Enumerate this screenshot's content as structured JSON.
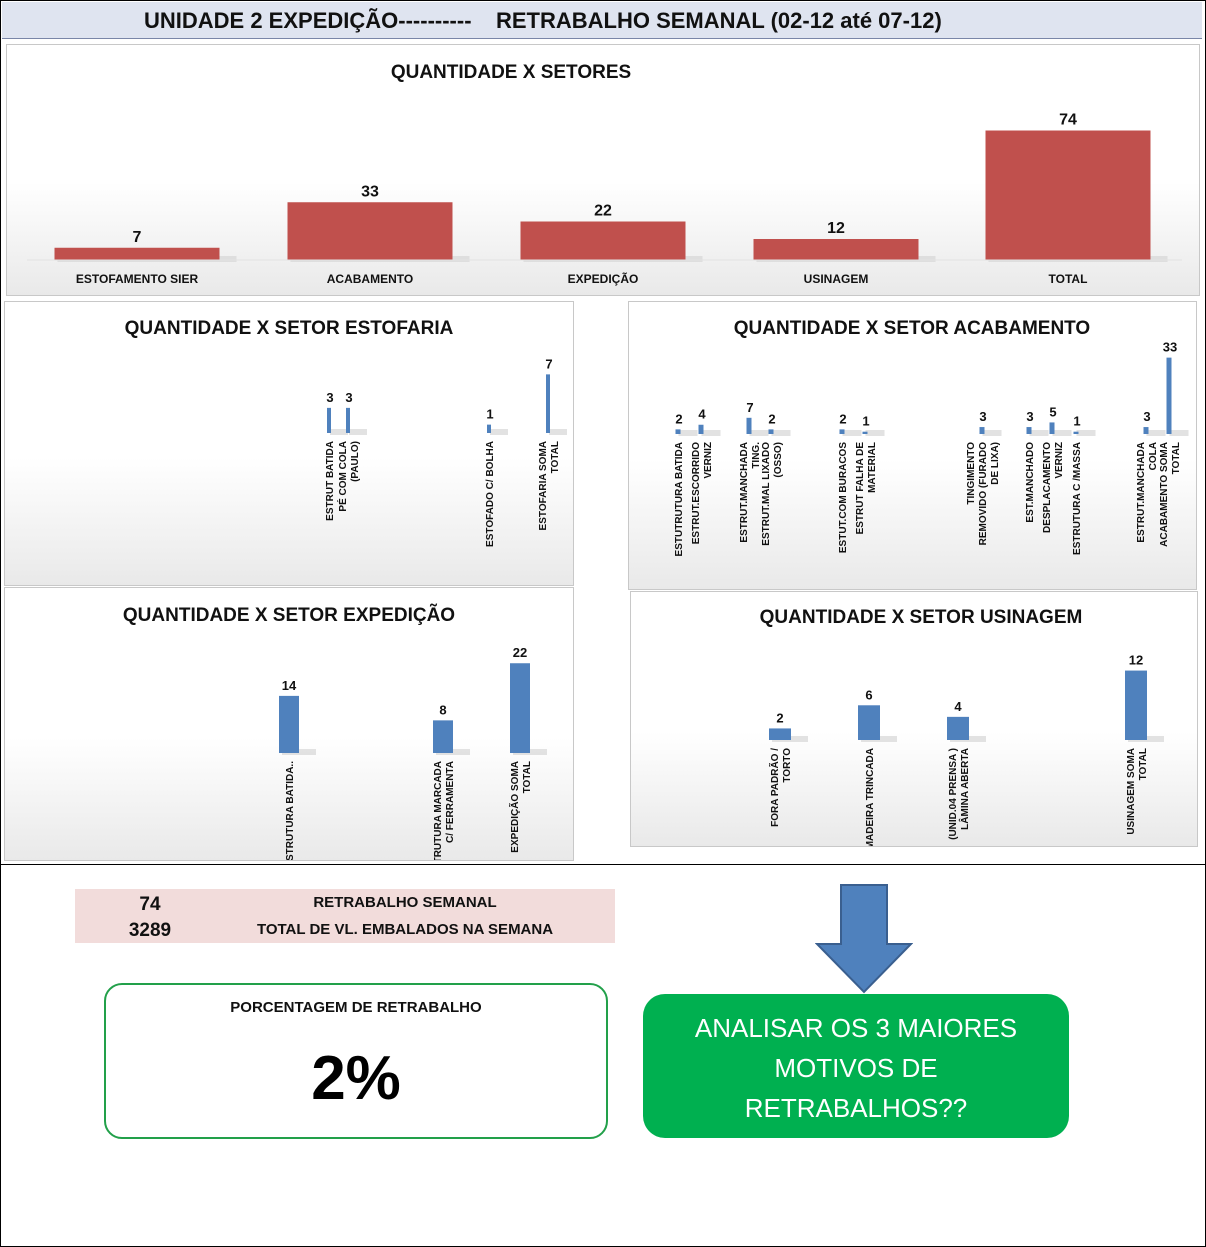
{
  "header": {
    "title": "UNIDADE 2 EXPEDIÇÃO----------    RETRABALHO SEMANAL (02-12 até 07-12)"
  },
  "chart_data": [
    {
      "id": "setores",
      "type": "bar",
      "title": "QUANTIDADE X SETORES",
      "categories": [
        "ESTOFAMENTO SIER",
        "ACABAMENTO",
        "EXPEDIÇÃO",
        "USINAGEM",
        "TOTAL"
      ],
      "values": [
        7,
        33,
        22,
        12,
        74
      ],
      "color": "#c0504d",
      "ylim": [
        0,
        80
      ]
    },
    {
      "id": "estofaria",
      "type": "bar",
      "title": "QUANTIDADE X SETOR ESTOFARIA",
      "categories": [
        "ESTRUT BATIDA",
        "PÉ COM COLA (PAULO)",
        "ESTOFADO C/ BOLHA",
        "ESTOFARIA SOMA TOTAL"
      ],
      "values": [
        3,
        3,
        1,
        7
      ],
      "color": "#4f81bd",
      "ylim": [
        0,
        8
      ]
    },
    {
      "id": "acabamento",
      "type": "bar",
      "title": "QUANTIDADE X SETOR ACABAMENTO",
      "categories": [
        "ESTUTRUTURA BATIDA",
        "ESTRUT.ESCORRIDO VERNIZ",
        "ESTRUT.MANCHADA TING.",
        "ESTRUT.MAL LIXADO (OSSO)",
        "ESTUT.COM BURACOS",
        "ESTRUT FALHA DE MATERIAL",
        "TINGIMENTO REMOVIDO (FURADO DE LIXA)",
        "EST.MANCHADO",
        "DESPLACAMENTO VERNIZ",
        "ESTRUTURA C /MASSA",
        "ESTRUT.MANCHADA COLA",
        "ACABAMENTO SOMA TOTAL"
      ],
      "values": [
        2,
        4,
        7,
        2,
        2,
        1,
        3,
        3,
        5,
        1,
        3,
        33
      ],
      "color": "#4f81bd",
      "ylim": [
        0,
        35
      ]
    },
    {
      "id": "expedicao",
      "type": "bar",
      "title": "QUANTIDADE X SETOR EXPEDIÇÃO",
      "categories": [
        "ESTRUTURA BATIDA..",
        "ESTRUTURA MARCADA C/ FERRAMENTA",
        "EXPEDIÇÃO SOMA TOTAL"
      ],
      "values": [
        14,
        8,
        22
      ],
      "color": "#4f81bd",
      "ylim": [
        0,
        25
      ]
    },
    {
      "id": "usinagem",
      "type": "bar",
      "title": "QUANTIDADE X SETOR USINAGEM",
      "categories": [
        "FORA PADRÃO / TORTO",
        "MADEIRA TRINCADA",
        "(UNID.04 PRENSA ) LÂMINA ABERTA",
        "USINAGEM SOMA TOTAL"
      ],
      "values": [
        2,
        6,
        4,
        12
      ],
      "color": "#4f81bd",
      "ylim": [
        0,
        14
      ]
    }
  ],
  "summary": {
    "row1_value": "74",
    "row1_label": "RETRABALHO SEMANAL",
    "row2_value": "3289",
    "row2_label": "TOTAL DE VL. EMBALADOS NA SEMANA"
  },
  "percentage": {
    "label": "PORCENTAGEM DE RETRABALHO",
    "value": "2%"
  },
  "cta": {
    "line1": "ANALISAR OS 3 MAIORES",
    "line2": "MOTIVOS DE",
    "line3": "RETRABALHOS??",
    "color": "#00b050"
  },
  "arrow": {
    "color": "#4f81bd",
    "icon": "arrow-down-icon"
  }
}
